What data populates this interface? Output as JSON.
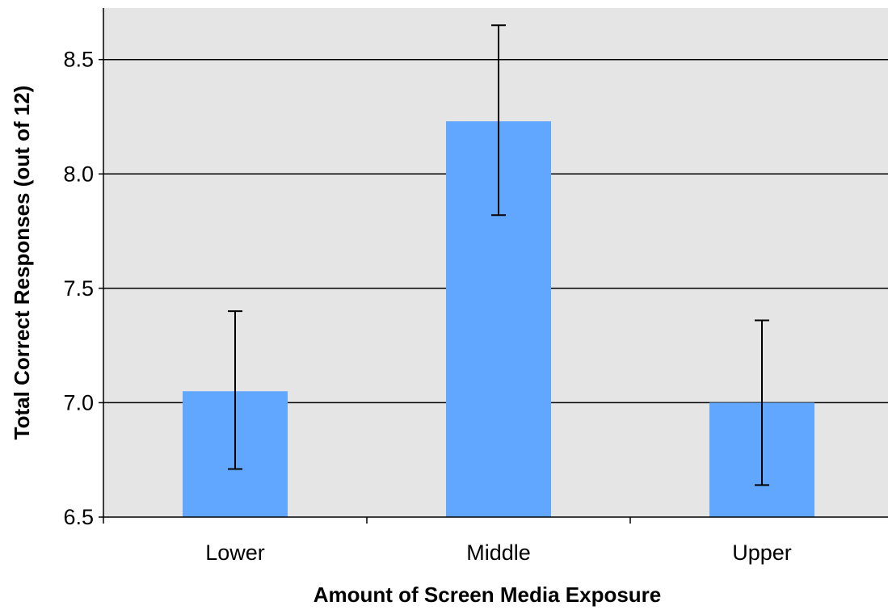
{
  "chart_data": {
    "type": "bar",
    "categories": [
      "Lower",
      "Middle",
      "Upper"
    ],
    "values": [
      7.05,
      8.23,
      7.0
    ],
    "error_bars": {
      "upper": [
        7.4,
        8.65,
        7.36
      ],
      "lower": [
        6.71,
        7.82,
        6.64
      ]
    },
    "xlabel": "Amount of Screen Media Exposure",
    "ylabel": "Total Correct Responses (out of 12)",
    "ylim": [
      6.5,
      8.725
    ],
    "yticks": [
      6.5,
      7.0,
      7.5,
      8.0,
      8.5
    ],
    "ytick_labels": [
      "6.5",
      "7.0",
      "7.5",
      "8.0",
      "8.5"
    ],
    "grid": true,
    "legend": "none",
    "colors": {
      "bar": "#61a6ff",
      "plot_background": "#e5e5e5",
      "grid": "#000000",
      "error_bar": "#000000"
    }
  }
}
